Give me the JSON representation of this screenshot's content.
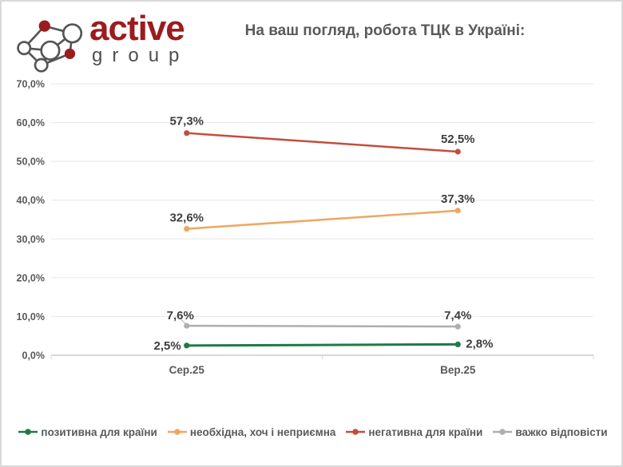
{
  "logo": {
    "brand": "active",
    "brand_sub": "group"
  },
  "title": "На ваш погляд, робота ТЦК в Україні:",
  "chart_data": {
    "type": "line",
    "categories": [
      "Сер.25",
      "Вер.25"
    ],
    "series": [
      {
        "name": "позитивна для країни",
        "values": [
          2.5,
          2.8
        ],
        "point_labels": [
          "2,5%",
          "2,8%"
        ],
        "color": "#1e7a48"
      },
      {
        "name": "необхідна, хоч і неприємна",
        "values": [
          32.6,
          37.3
        ],
        "point_labels": [
          "32,6%",
          "37,3%"
        ],
        "color": "#efa662"
      },
      {
        "name": "негативна для країни",
        "values": [
          57.3,
          52.5
        ],
        "point_labels": [
          "57,3%",
          "52,5%"
        ],
        "color": "#c24e3c"
      },
      {
        "name": "важко відповісти",
        "values": [
          7.6,
          7.4
        ],
        "point_labels": [
          "7,6%",
          "7,4%"
        ],
        "color": "#aeaeae"
      }
    ],
    "ylim": [
      0,
      70
    ],
    "yticks": [
      0,
      10,
      20,
      30,
      40,
      50,
      60,
      70
    ],
    "ytick_labels": [
      "0,0%",
      "10,0%",
      "20,0%",
      "30,0%",
      "40,0%",
      "50,0%",
      "60,0%",
      "70,0%"
    ],
    "grid": "horizontal",
    "legend_position": "bottom"
  },
  "colors": {
    "title_text": "#58595b",
    "axis_text": "#595959",
    "data_label_text": "#3d3d3d",
    "gridline": "#ececec",
    "axis_line": "#cccccc",
    "tick": "#d9d9d9",
    "leader_line": "#b5b5b5",
    "logo_red": "#9c1b1e",
    "logo_gray": "#4f4f51",
    "border": "#d9d9d9"
  }
}
